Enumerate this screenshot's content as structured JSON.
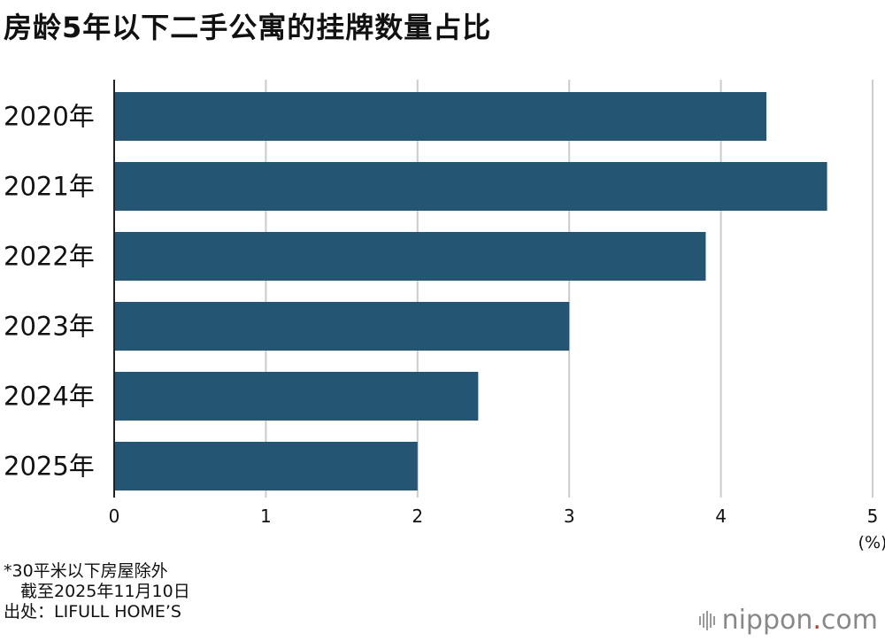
{
  "title": "房龄5年以下二手公寓的挂牌数量占比",
  "chart_data": {
    "type": "bar",
    "orientation": "horizontal",
    "categories": [
      "2020年",
      "2021年",
      "2022年",
      "2023年",
      "2024年",
      "2025年"
    ],
    "values": [
      4.3,
      4.7,
      3.9,
      3.0,
      2.4,
      2.0
    ],
    "xlim": [
      0,
      5
    ],
    "xticks": [
      "0",
      "1",
      "2",
      "3",
      "4",
      "5"
    ],
    "unit_label": "(%)",
    "grid": true,
    "colors": {
      "bar": "#245573",
      "grid": "#cccccc",
      "axis": "#222222"
    }
  },
  "notes": [
    "*30平米以下房屋除外",
    "　截至2025年11月10日",
    "出处：LIFULL HOME’S"
  ],
  "logo": {
    "main": "nippon",
    "dot": ".",
    "suffix": "com"
  }
}
